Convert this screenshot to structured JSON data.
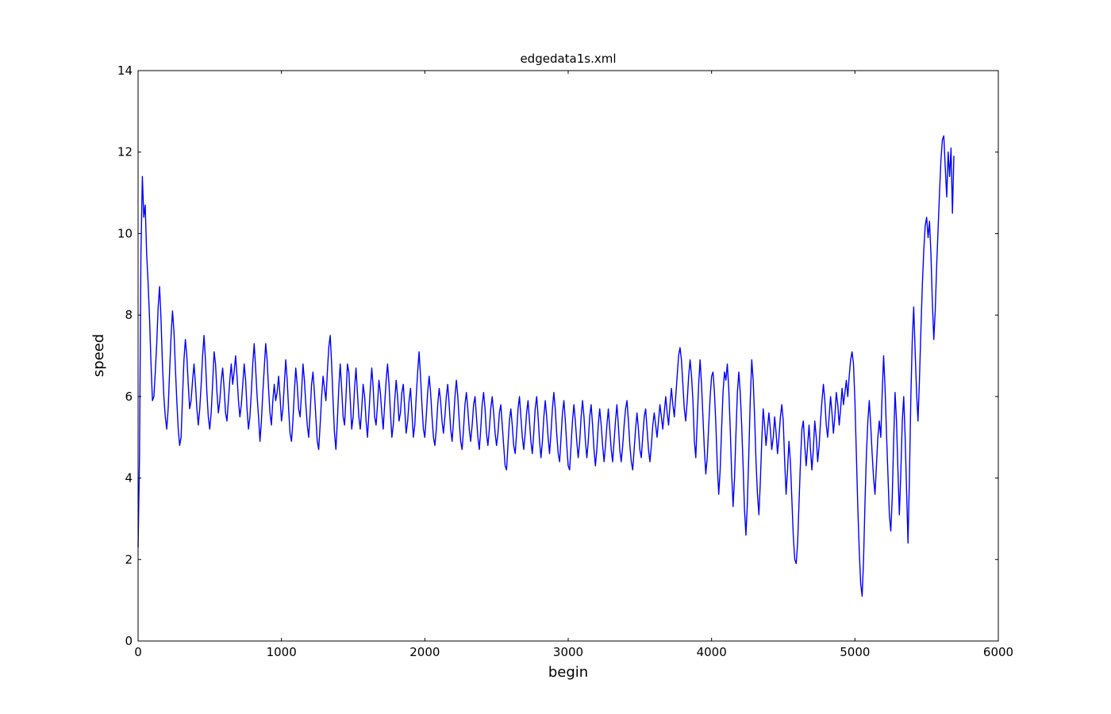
{
  "chart_data": {
    "type": "line",
    "title": "edgedata1s.xml",
    "xlabel": "begin",
    "ylabel": "speed",
    "xlim": [
      0,
      6000
    ],
    "ylim": [
      0,
      14
    ],
    "x_ticks": [
      0,
      1000,
      2000,
      3000,
      4000,
      5000,
      6000
    ],
    "y_ticks": [
      0,
      2,
      4,
      6,
      8,
      10,
      12,
      14
    ],
    "grid": false,
    "legend_position": "none",
    "line_color": "#0000ff",
    "axis_color": "#000000",
    "background_color": "#ffffff",
    "series": [
      {
        "name": "speed",
        "x_start": 0,
        "x_step": 10,
        "values": [
          2.3,
          4.5,
          9.5,
          11.4,
          10.4,
          10.7,
          9.5,
          8.8,
          7.9,
          6.8,
          5.9,
          6.0,
          6.6,
          7.3,
          8.2,
          8.7,
          7.9,
          6.8,
          6.0,
          5.5,
          5.2,
          5.7,
          6.6,
          7.5,
          8.1,
          7.6,
          6.7,
          5.9,
          5.2,
          4.8,
          5.0,
          6.0,
          6.9,
          7.4,
          7.0,
          6.3,
          5.7,
          5.9,
          6.4,
          6.8,
          6.3,
          5.7,
          5.3,
          5.7,
          6.3,
          7.0,
          7.5,
          6.9,
          6.1,
          5.5,
          5.2,
          5.6,
          6.3,
          7.1,
          6.8,
          6.1,
          5.6,
          5.9,
          6.4,
          6.7,
          6.2,
          5.6,
          5.4,
          5.9,
          6.4,
          6.8,
          6.3,
          6.6,
          7.0,
          6.5,
          5.9,
          5.5,
          5.8,
          6.3,
          6.8,
          6.4,
          5.7,
          5.2,
          5.5,
          6.1,
          6.8,
          7.3,
          6.7,
          6.0,
          5.5,
          4.9,
          5.4,
          6.1,
          6.7,
          7.3,
          6.9,
          6.2,
          5.6,
          5.3,
          5.9,
          6.3,
          5.9,
          6.1,
          6.5,
          6.0,
          5.4,
          5.7,
          6.3,
          6.9,
          6.4,
          5.7,
          5.1,
          4.9,
          5.4,
          6.1,
          6.7,
          6.3,
          5.7,
          5.5,
          6.1,
          6.8,
          6.4,
          5.8,
          5.3,
          5.0,
          5.6,
          6.3,
          6.6,
          6.1,
          5.5,
          4.9,
          4.7,
          5.3,
          6.0,
          6.5,
          6.2,
          5.9,
          6.6,
          7.2,
          7.5,
          6.8,
          5.9,
          5.1,
          4.7,
          5.4,
          6.2,
          6.8,
          6.2,
          5.5,
          5.3,
          6.0,
          6.8,
          6.6,
          5.9,
          5.2,
          5.5,
          6.2,
          6.7,
          6.1,
          5.5,
          5.2,
          5.7,
          6.3,
          6.0,
          5.4,
          5.0,
          5.6,
          6.2,
          6.7,
          6.2,
          5.5,
          5.3,
          5.8,
          6.4,
          6.1,
          5.6,
          5.2,
          5.8,
          6.4,
          6.8,
          6.3,
          5.6,
          5.0,
          5.3,
          5.9,
          6.4,
          6.0,
          5.4,
          5.6,
          6.1,
          6.3,
          5.7,
          5.1,
          5.4,
          5.9,
          6.2,
          5.6,
          5.0,
          5.3,
          6.0,
          6.6,
          7.1,
          6.5,
          5.8,
          5.2,
          5.0,
          5.5,
          6.1,
          6.5,
          6.1,
          5.5,
          5.0,
          4.8,
          5.2,
          5.8,
          6.2,
          5.9,
          5.4,
          5.1,
          5.5,
          6.0,
          6.3,
          5.8,
          5.2,
          4.9,
          5.4,
          6.0,
          6.4,
          6.0,
          5.4,
          4.9,
          4.7,
          5.2,
          5.8,
          6.1,
          5.7,
          5.2,
          4.9,
          5.3,
          5.8,
          6.0,
          5.5,
          5.0,
          4.7,
          5.2,
          5.8,
          6.1,
          5.7,
          5.1,
          4.8,
          5.2,
          5.7,
          6.0,
          5.6,
          5.1,
          4.8,
          5.1,
          5.6,
          5.8,
          5.3,
          4.8,
          4.3,
          4.2,
          4.8,
          5.4,
          5.7,
          5.3,
          4.8,
          4.6,
          5.1,
          5.7,
          6.0,
          5.5,
          5.0,
          4.7,
          5.1,
          5.6,
          5.9,
          5.4,
          4.9,
          4.6,
          5.1,
          5.7,
          6.0,
          5.5,
          4.9,
          4.5,
          4.9,
          5.5,
          5.9,
          5.5,
          5.0,
          4.6,
          5.1,
          5.7,
          6.1,
          5.7,
          5.1,
          4.6,
          4.4,
          5.0,
          5.6,
          5.9,
          5.4,
          4.8,
          4.3,
          4.2,
          4.8,
          5.4,
          5.8,
          5.4,
          4.9,
          4.5,
          4.9,
          5.5,
          5.9,
          5.5,
          4.9,
          4.5,
          4.9,
          5.5,
          5.8,
          5.3,
          4.7,
          4.3,
          4.7,
          5.3,
          5.7,
          5.3,
          4.8,
          4.4,
          4.8,
          5.3,
          5.7,
          5.2,
          4.7,
          4.4,
          4.9,
          5.4,
          5.8,
          5.3,
          4.7,
          4.4,
          4.8,
          5.3,
          5.7,
          5.9,
          5.4,
          4.8,
          4.4,
          4.2,
          4.7,
          5.2,
          5.6,
          5.2,
          4.7,
          4.5,
          5.0,
          5.5,
          5.7,
          5.2,
          4.7,
          4.4,
          4.8,
          5.3,
          5.6,
          5.3,
          5.0,
          5.4,
          5.8,
          5.5,
          5.2,
          5.6,
          6.0,
          5.6,
          5.3,
          5.8,
          6.2,
          5.8,
          5.5,
          6.0,
          6.5,
          7.0,
          7.2,
          6.9,
          6.3,
          5.7,
          5.4,
          5.9,
          6.5,
          6.9,
          6.5,
          5.9,
          4.9,
          4.5,
          5.4,
          6.3,
          6.9,
          6.3,
          5.5,
          4.7,
          4.1,
          4.5,
          5.3,
          6.0,
          6.5,
          6.6,
          6.1,
          5.3,
          4.3,
          3.6,
          4.2,
          5.2,
          6.1,
          6.6,
          6.4,
          6.8,
          6.2,
          5.2,
          4.1,
          3.3,
          4.0,
          5.1,
          6.1,
          6.6,
          6.1,
          5.3,
          4.3,
          3.2,
          2.6,
          3.4,
          4.6,
          5.9,
          6.9,
          6.4,
          5.5,
          4.4,
          3.6,
          3.1,
          3.9,
          4.9,
          5.7,
          5.3,
          4.8,
          5.2,
          5.6,
          5.2,
          4.7,
          5.0,
          5.5,
          5.1,
          4.6,
          5.0,
          5.5,
          5.8,
          5.4,
          4.4,
          3.6,
          4.2,
          4.9,
          4.4,
          3.5,
          2.6,
          2.0,
          1.9,
          2.4,
          3.4,
          4.4,
          5.2,
          5.4,
          4.8,
          4.3,
          4.8,
          5.3,
          4.7,
          4.2,
          4.7,
          5.4,
          5.0,
          4.4,
          4.8,
          5.4,
          5.9,
          6.3,
          5.9,
          5.3,
          5.0,
          5.5,
          6.0,
          5.6,
          5.1,
          5.5,
          6.1,
          5.8,
          5.3,
          5.7,
          6.2,
          5.8,
          6.1,
          6.4,
          6.0,
          6.5,
          6.9,
          7.1,
          6.8,
          5.9,
          4.6,
          3.3,
          2.2,
          1.4,
          1.1,
          2.0,
          3.4,
          4.6,
          5.4,
          5.9,
          5.3,
          4.6,
          4.0,
          3.6,
          4.3,
          5.0,
          5.4,
          5.0,
          6.1,
          7.0,
          6.2,
          5.1,
          4.1,
          3.1,
          2.7,
          3.5,
          4.9,
          6.1,
          5.4,
          4.2,
          3.1,
          4.1,
          5.4,
          6.0,
          5.0,
          3.7,
          2.4,
          4.0,
          6.0,
          7.4,
          8.2,
          7.1,
          6.1,
          5.4,
          6.4,
          7.6,
          8.7,
          9.6,
          10.2,
          10.4,
          9.9,
          10.3,
          9.5,
          8.3,
          7.4,
          8.1,
          9.2,
          10.1,
          11.0,
          11.8,
          12.3,
          12.4,
          11.6,
          10.9,
          12.0,
          11.4,
          12.1,
          10.5,
          11.9
        ]
      }
    ]
  },
  "layout_labels": {
    "figure_name": "edgedata1s.xml plot"
  }
}
